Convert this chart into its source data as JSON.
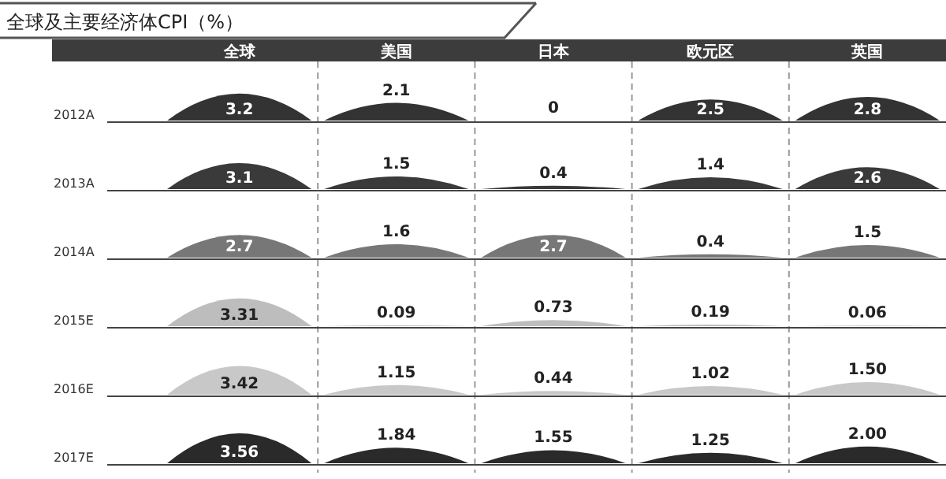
{
  "chart_data": {
    "type": "heatmap",
    "title": "全球及主要经济体CPI（%）",
    "categories": [
      "全球",
      "美国",
      "日本",
      "欧元区",
      "英国"
    ],
    "y_categories": [
      "2012A",
      "2013A",
      "2014A",
      "2015E",
      "2016E",
      "2017E"
    ],
    "cells": [
      [
        3.2,
        2.1,
        0,
        2.5,
        2.8
      ],
      [
        3.1,
        1.5,
        0.4,
        1.4,
        2.6
      ],
      [
        2.7,
        1.6,
        2.7,
        0.4,
        1.5
      ],
      [
        3.31,
        0.09,
        0.73,
        0.19,
        0.06
      ],
      [
        3.42,
        1.15,
        0.44,
        1.02,
        1.5
      ],
      [
        3.56,
        1.84,
        1.55,
        1.25,
        2.0
      ]
    ],
    "cell_labels": [
      [
        "3.2",
        "2.1",
        "0",
        "2.5",
        "2.8"
      ],
      [
        "3.1",
        "1.5",
        "0.4",
        "1.4",
        "2.6"
      ],
      [
        "2.7",
        "1.6",
        "2.7",
        "0.4",
        "1.5"
      ],
      [
        "3.31",
        "0.09",
        "0.73",
        "0.19",
        "0.06"
      ],
      [
        "3.42",
        "1.15",
        "0.44",
        "1.02",
        "1.50"
      ],
      [
        "3.56",
        "1.84",
        "1.55",
        "1.25",
        "2.00"
      ]
    ],
    "colors": [
      "#333333",
      "#3a3a3a",
      "#777777",
      "#bdbdbd",
      "#c8c8c8",
      "#2a2a2a"
    ]
  }
}
